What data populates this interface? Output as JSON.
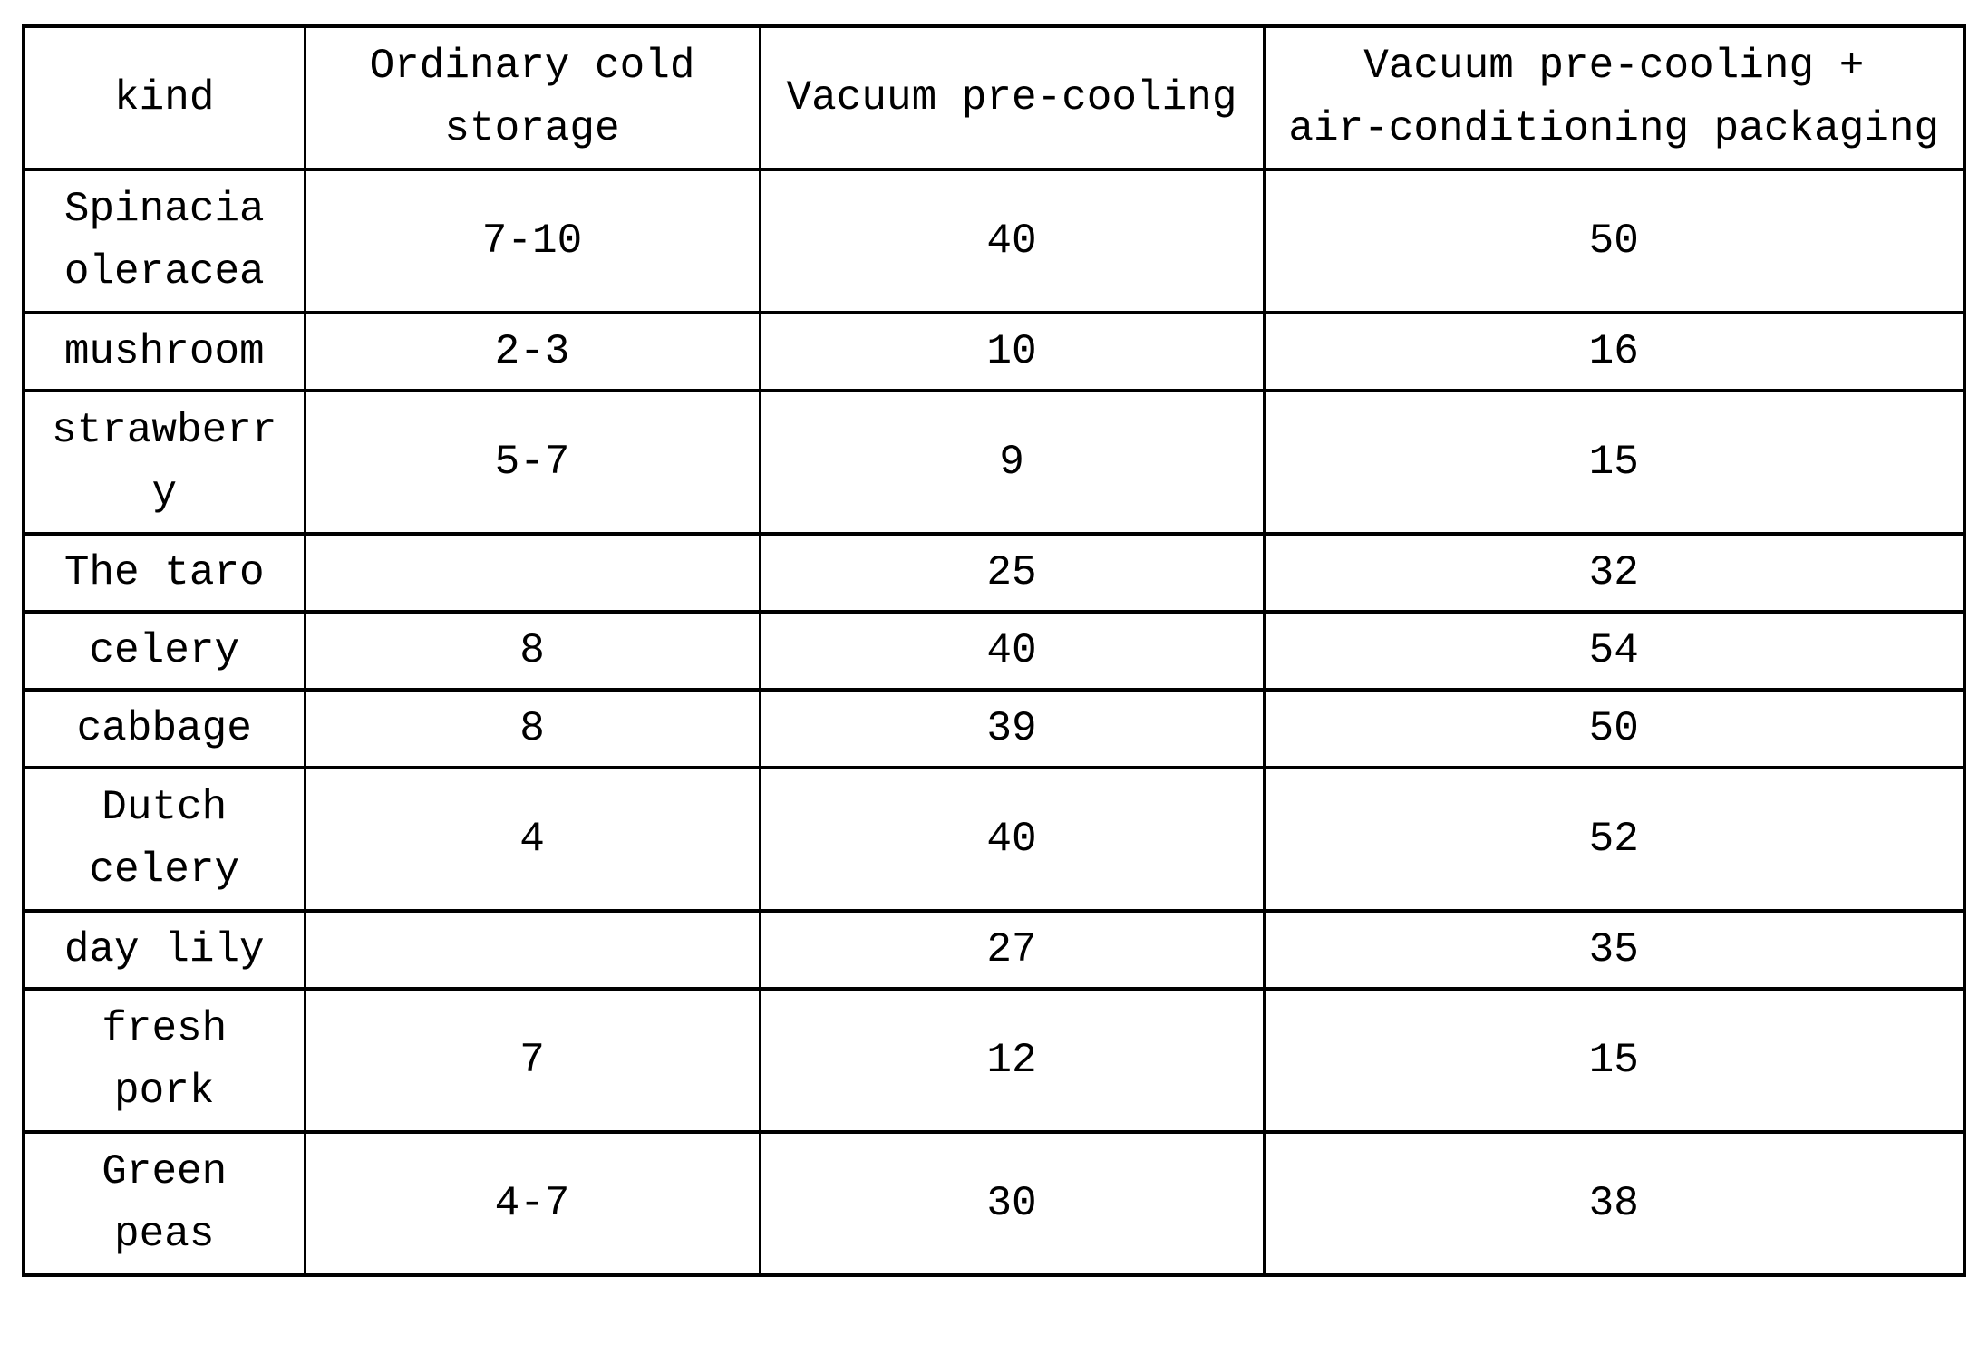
{
  "page": {
    "background_color": "#ffffff",
    "border_color": "#000000",
    "text_color": "#000000"
  },
  "table": {
    "description": "Comparison of preservation days for produce under different pre-cooling and storage methods",
    "columns": [
      {
        "id": "kind",
        "label": "kind"
      },
      {
        "id": "ordinary",
        "label": "Ordinary cold storage"
      },
      {
        "id": "vacuum",
        "label": "Vacuum pre-cooling"
      },
      {
        "id": "vacuum_map",
        "label": "Vacuum pre-cooling +\nair-conditioning packaging"
      }
    ],
    "rows": [
      {
        "kind": "Spinacia oleracea",
        "ordinary": "7-10",
        "vacuum": "40",
        "vacuum_map": "50"
      },
      {
        "kind": "mushroom",
        "ordinary": "2-3",
        "vacuum": "10",
        "vacuum_map": "16"
      },
      {
        "kind": "strawberry",
        "ordinary": "5-7",
        "vacuum": "9",
        "vacuum_map": "15"
      },
      {
        "kind": "The taro",
        "ordinary": "",
        "vacuum": "25",
        "vacuum_map": "32"
      },
      {
        "kind": "celery",
        "ordinary": "8",
        "vacuum": "40",
        "vacuum_map": "54"
      },
      {
        "kind": "cabbage",
        "ordinary": "8",
        "vacuum": "39",
        "vacuum_map": "50"
      },
      {
        "kind": "Dutch celery",
        "ordinary": "4",
        "vacuum": "40",
        "vacuum_map": "52"
      },
      {
        "kind": "day lily",
        "ordinary": "",
        "vacuum": "27",
        "vacuum_map": "35"
      },
      {
        "kind": "fresh pork",
        "ordinary": "7",
        "vacuum": "12",
        "vacuum_map": "15"
      },
      {
        "kind": "Green peas",
        "ordinary": "4-7",
        "vacuum": "30",
        "vacuum_map": "38"
      }
    ]
  },
  "chart_data": {
    "type": "table",
    "title": "",
    "categories": [
      "Spinacia oleracea",
      "mushroom",
      "strawberry",
      "The taro",
      "celery",
      "cabbage",
      "Dutch celery",
      "day lily",
      "fresh pork",
      "Green peas"
    ],
    "series": [
      {
        "name": "Ordinary cold storage",
        "values": [
          "7-10",
          "2-3",
          "5-7",
          "",
          "8",
          "8",
          "4",
          "",
          "7",
          "4-7"
        ]
      },
      {
        "name": "Vacuum pre-cooling",
        "values": [
          40,
          10,
          9,
          25,
          40,
          39,
          40,
          27,
          12,
          30
        ]
      },
      {
        "name": "Vacuum pre-cooling + air-conditioning packaging",
        "values": [
          50,
          16,
          15,
          32,
          54,
          50,
          52,
          35,
          15,
          38
        ]
      }
    ]
  }
}
